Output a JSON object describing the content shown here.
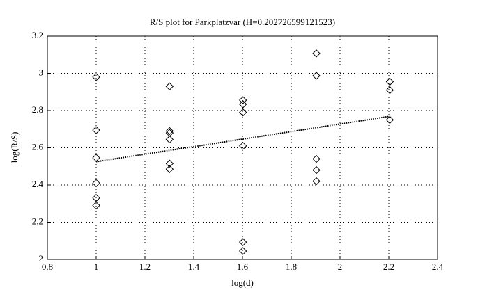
{
  "chart_data": {
    "type": "scatter",
    "title": "R/S plot for Parkplatzvar (H=0.202726599121523)",
    "xlabel": "log(d)",
    "ylabel": "log(R/S)",
    "xlim": [
      0.8,
      2.4
    ],
    "xticks": [
      0.8,
      1,
      1.2,
      1.4,
      1.6,
      1.8,
      2,
      2.2,
      2.4
    ],
    "ylim": [
      2,
      3.2
    ],
    "yticks": [
      2,
      2.2,
      2.4,
      2.6,
      2.8,
      3,
      3.2
    ],
    "grid": true,
    "series": [
      {
        "marker": "diamond",
        "color": "#000000",
        "x": [
          1,
          1,
          1,
          1,
          1,
          1,
          1.301,
          1.301,
          1.301,
          1.301,
          1.301,
          1.301,
          1.602,
          1.602,
          1.602,
          1.602,
          1.602,
          1.602,
          1.903,
          1.903,
          1.903,
          1.903,
          1.903,
          2.204,
          2.204,
          2.204
        ],
        "values": [
          2.98,
          2.695,
          2.546,
          2.41,
          2.33,
          2.29,
          2.93,
          2.69,
          2.68,
          2.645,
          2.515,
          2.485,
          2.856,
          2.834,
          2.79,
          2.61,
          2.093,
          2.045,
          3.107,
          2.987,
          2.54,
          2.48,
          2.42,
          2.955,
          2.91,
          2.75
        ]
      },
      {
        "line": "dotted",
        "color": "#000000",
        "x": [
          1,
          2.204
        ],
        "values": [
          2.525,
          2.769
        ]
      }
    ]
  }
}
